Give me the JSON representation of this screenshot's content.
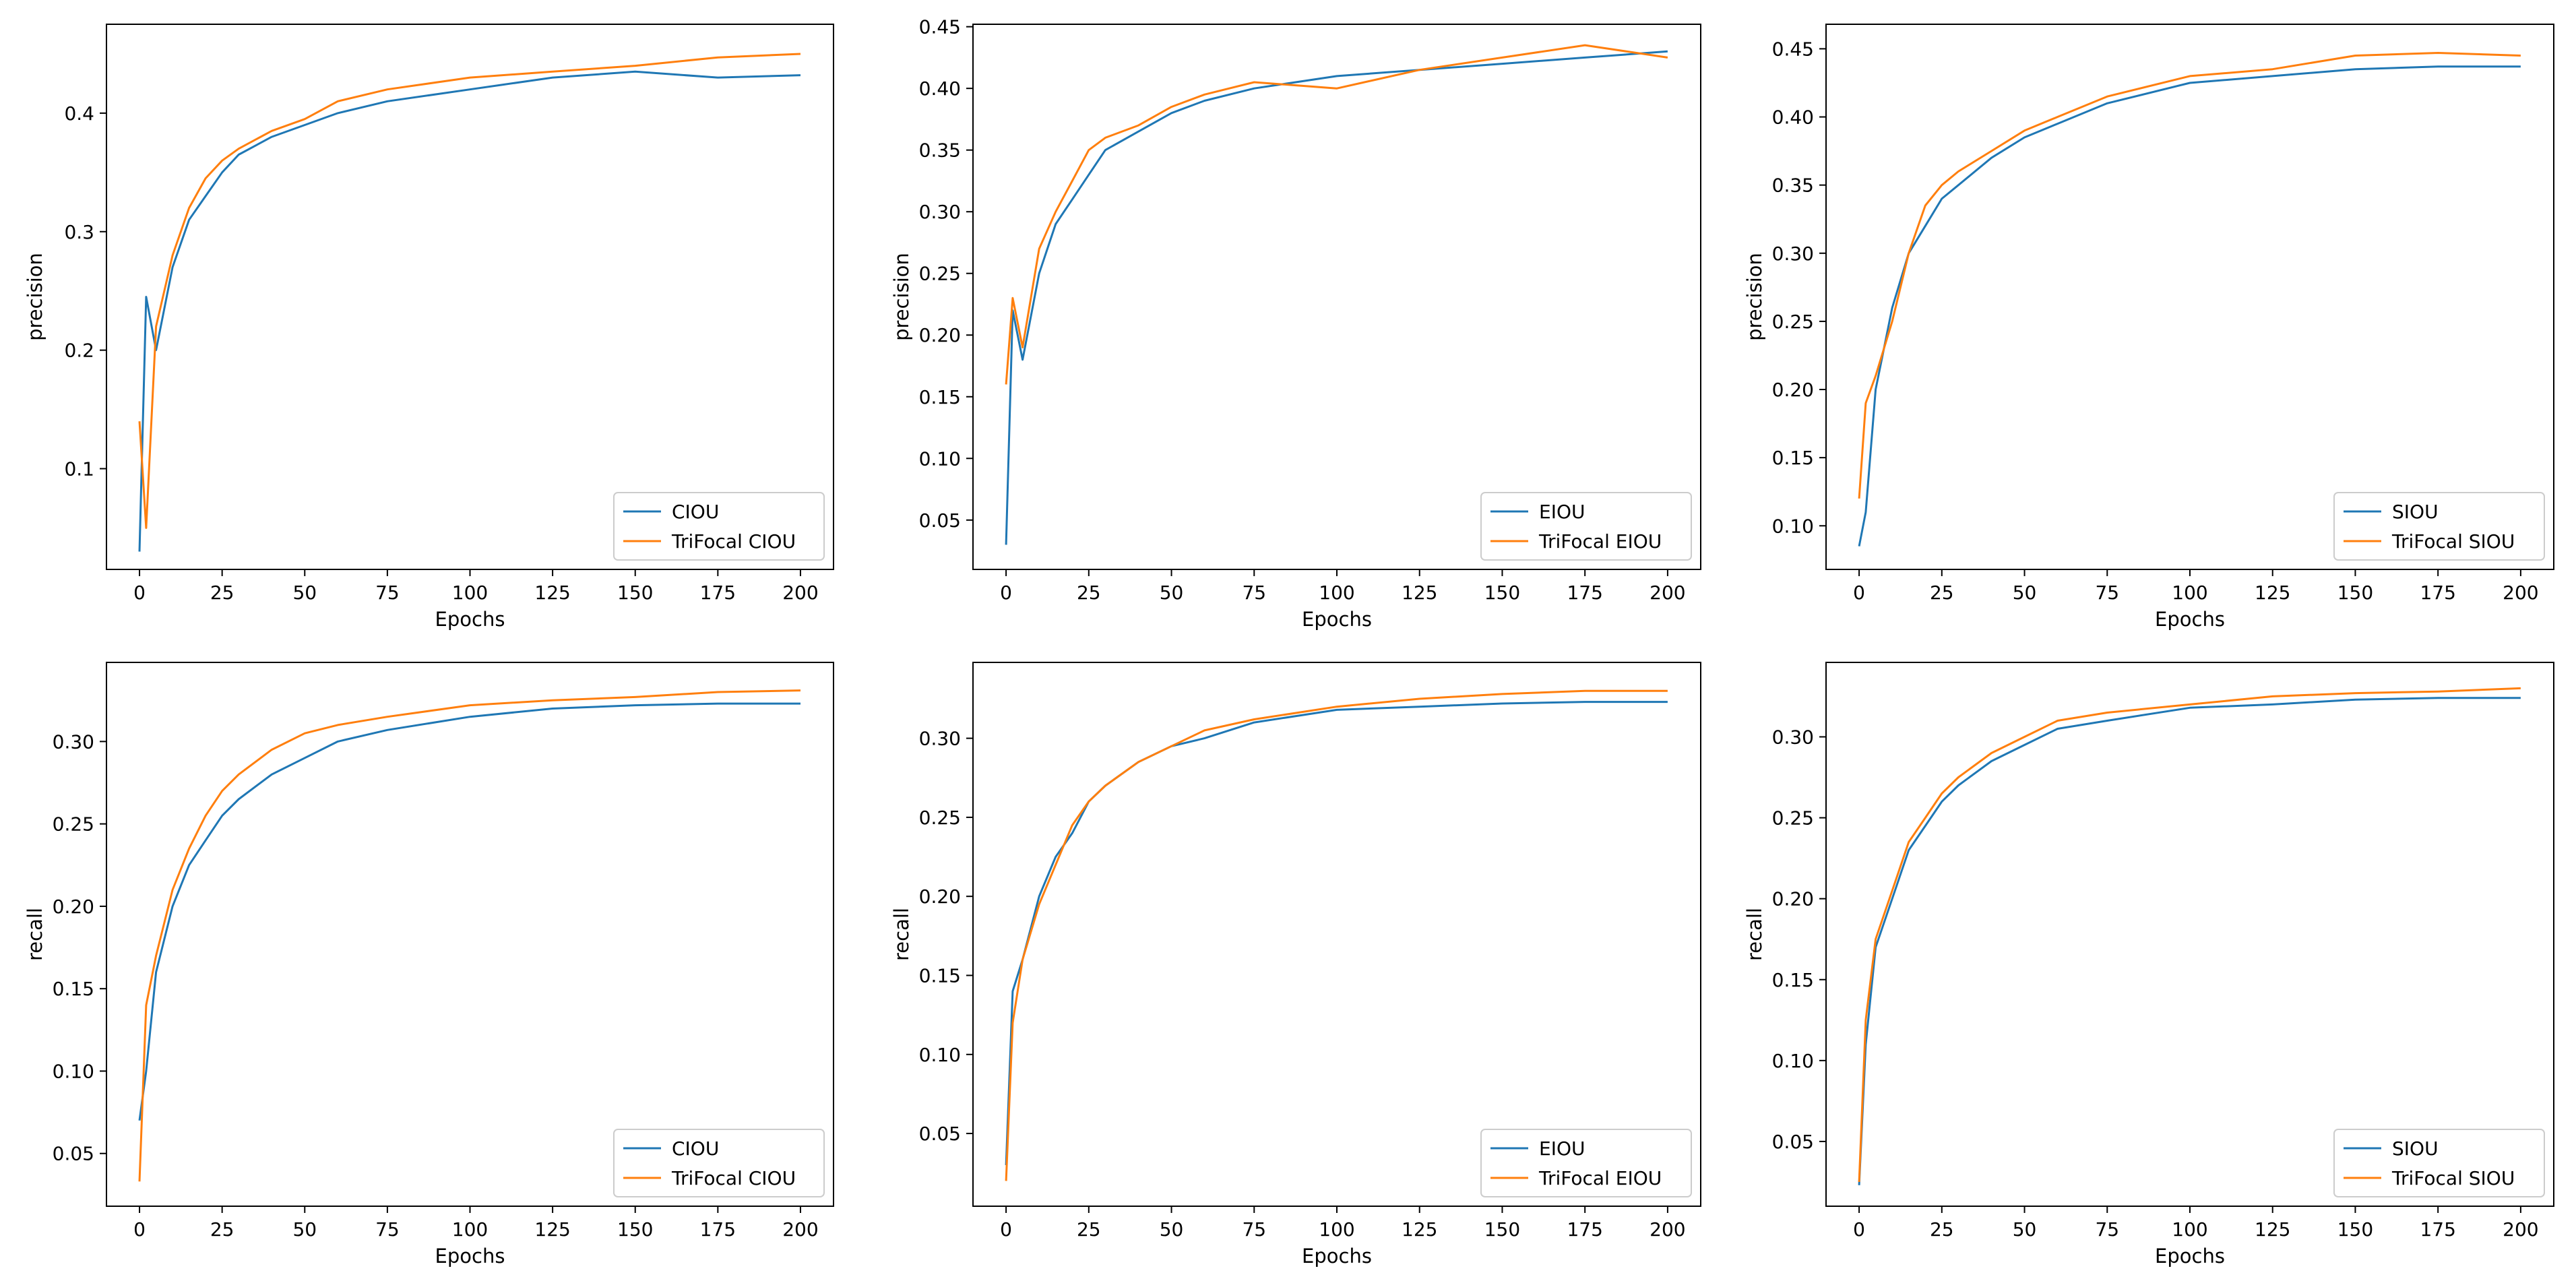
{
  "figure": {
    "colors": {
      "series1": "#1f77b4",
      "series2": "#ff7f0e",
      "axis": "#000000"
    }
  },
  "chart_data": [
    {
      "type": "line",
      "xlabel": "Epochs",
      "ylabel": "precision",
      "xlim": [
        -10,
        210
      ],
      "ylim": [
        0.015,
        0.475
      ],
      "xticks": [
        0,
        25,
        50,
        75,
        100,
        125,
        150,
        175,
        200
      ],
      "yticks": [
        0.1,
        0.2,
        0.3,
        0.4
      ],
      "ytick_decimals": 1,
      "legend_location": "lower right",
      "x": [
        0,
        2,
        5,
        10,
        15,
        20,
        25,
        30,
        40,
        50,
        60,
        75,
        100,
        125,
        150,
        175,
        200
      ],
      "series": [
        {
          "name": "CIOU",
          "values": [
            0.03,
            0.245,
            0.2,
            0.27,
            0.31,
            0.33,
            0.35,
            0.365,
            0.38,
            0.39,
            0.4,
            0.41,
            0.42,
            0.43,
            0.435,
            0.43,
            0.432
          ]
        },
        {
          "name": "TriFocal CIOU",
          "values": [
            0.14,
            0.05,
            0.22,
            0.28,
            0.32,
            0.345,
            0.36,
            0.37,
            0.385,
            0.395,
            0.41,
            0.42,
            0.43,
            0.435,
            0.44,
            0.447,
            0.45
          ]
        }
      ]
    },
    {
      "type": "line",
      "xlabel": "Epochs",
      "ylabel": "precision",
      "xlim": [
        -10,
        210
      ],
      "ylim": [
        0.01,
        0.452
      ],
      "xticks": [
        0,
        25,
        50,
        75,
        100,
        125,
        150,
        175,
        200
      ],
      "yticks": [
        0.05,
        0.1,
        0.15,
        0.2,
        0.25,
        0.3,
        0.35,
        0.4,
        0.45
      ],
      "ytick_decimals": 2,
      "legend_location": "lower right",
      "x": [
        0,
        2,
        5,
        10,
        15,
        20,
        25,
        30,
        40,
        50,
        60,
        75,
        100,
        125,
        150,
        175,
        200
      ],
      "series": [
        {
          "name": "EIOU",
          "values": [
            0.03,
            0.22,
            0.18,
            0.25,
            0.29,
            0.31,
            0.33,
            0.35,
            0.365,
            0.38,
            0.39,
            0.4,
            0.41,
            0.415,
            0.42,
            0.425,
            0.43
          ]
        },
        {
          "name": "TriFocal EIOU",
          "values": [
            0.16,
            0.23,
            0.19,
            0.27,
            0.3,
            0.325,
            0.35,
            0.36,
            0.37,
            0.385,
            0.395,
            0.405,
            0.4,
            0.415,
            0.425,
            0.435,
            0.425
          ]
        }
      ]
    },
    {
      "type": "line",
      "xlabel": "Epochs",
      "ylabel": "precision",
      "xlim": [
        -10,
        210
      ],
      "ylim": [
        0.068,
        0.468
      ],
      "xticks": [
        0,
        25,
        50,
        75,
        100,
        125,
        150,
        175,
        200
      ],
      "yticks": [
        0.1,
        0.15,
        0.2,
        0.25,
        0.3,
        0.35,
        0.4,
        0.45
      ],
      "ytick_decimals": 2,
      "legend_location": "lower right",
      "x": [
        0,
        2,
        5,
        10,
        15,
        20,
        25,
        30,
        40,
        50,
        60,
        75,
        100,
        125,
        150,
        175,
        200
      ],
      "series": [
        {
          "name": "SIOU",
          "values": [
            0.085,
            0.11,
            0.2,
            0.26,
            0.3,
            0.32,
            0.34,
            0.35,
            0.37,
            0.385,
            0.395,
            0.41,
            0.425,
            0.43,
            0.435,
            0.437,
            0.437
          ]
        },
        {
          "name": "TriFocal SIOU",
          "values": [
            0.12,
            0.19,
            0.21,
            0.25,
            0.3,
            0.335,
            0.35,
            0.36,
            0.375,
            0.39,
            0.4,
            0.415,
            0.43,
            0.435,
            0.445,
            0.447,
            0.445
          ]
        }
      ]
    },
    {
      "type": "line",
      "xlabel": "Epochs",
      "ylabel": "recall",
      "xlim": [
        -10,
        210
      ],
      "ylim": [
        0.018,
        0.348
      ],
      "xticks": [
        0,
        25,
        50,
        75,
        100,
        125,
        150,
        175,
        200
      ],
      "yticks": [
        0.05,
        0.1,
        0.15,
        0.2,
        0.25,
        0.3
      ],
      "ytick_decimals": 2,
      "legend_location": "lower right",
      "x": [
        0,
        2,
        5,
        10,
        15,
        20,
        25,
        30,
        40,
        50,
        60,
        75,
        100,
        125,
        150,
        175,
        200
      ],
      "series": [
        {
          "name": "CIOU",
          "values": [
            0.07,
            0.1,
            0.16,
            0.2,
            0.225,
            0.24,
            0.255,
            0.265,
            0.28,
            0.29,
            0.3,
            0.307,
            0.315,
            0.32,
            0.322,
            0.323,
            0.323
          ]
        },
        {
          "name": "TriFocal CIOU",
          "values": [
            0.033,
            0.14,
            0.17,
            0.21,
            0.235,
            0.255,
            0.27,
            0.28,
            0.295,
            0.305,
            0.31,
            0.315,
            0.322,
            0.325,
            0.327,
            0.33,
            0.331
          ]
        }
      ]
    },
    {
      "type": "line",
      "xlabel": "Epochs",
      "ylabel": "recall",
      "xlim": [
        -10,
        210
      ],
      "ylim": [
        0.004,
        0.348
      ],
      "xticks": [
        0,
        25,
        50,
        75,
        100,
        125,
        150,
        175,
        200
      ],
      "yticks": [
        0.05,
        0.1,
        0.15,
        0.2,
        0.25,
        0.3
      ],
      "ytick_decimals": 2,
      "legend_location": "lower right",
      "x": [
        0,
        2,
        5,
        10,
        15,
        20,
        25,
        30,
        40,
        50,
        60,
        75,
        100,
        125,
        150,
        175,
        200
      ],
      "series": [
        {
          "name": "EIOU",
          "values": [
            0.03,
            0.14,
            0.16,
            0.2,
            0.225,
            0.24,
            0.26,
            0.27,
            0.285,
            0.295,
            0.3,
            0.31,
            0.318,
            0.32,
            0.322,
            0.323,
            0.323
          ]
        },
        {
          "name": "TriFocal EIOU",
          "values": [
            0.02,
            0.12,
            0.16,
            0.195,
            0.22,
            0.245,
            0.26,
            0.27,
            0.285,
            0.295,
            0.305,
            0.312,
            0.32,
            0.325,
            0.328,
            0.33,
            0.33
          ]
        }
      ]
    },
    {
      "type": "line",
      "xlabel": "Epochs",
      "ylabel": "recall",
      "xlim": [
        -10,
        210
      ],
      "ylim": [
        0.01,
        0.346
      ],
      "xticks": [
        0,
        25,
        50,
        75,
        100,
        125,
        150,
        175,
        200
      ],
      "yticks": [
        0.05,
        0.1,
        0.15,
        0.2,
        0.25,
        0.3
      ],
      "ytick_decimals": 2,
      "legend_location": "lower right",
      "x": [
        0,
        2,
        5,
        10,
        15,
        20,
        25,
        30,
        40,
        50,
        60,
        75,
        100,
        125,
        150,
        175,
        200
      ],
      "series": [
        {
          "name": "SIOU",
          "values": [
            0.023,
            0.11,
            0.17,
            0.2,
            0.23,
            0.245,
            0.26,
            0.27,
            0.285,
            0.295,
            0.305,
            0.31,
            0.318,
            0.32,
            0.323,
            0.324,
            0.324
          ]
        },
        {
          "name": "TriFocal SIOU",
          "values": [
            0.025,
            0.125,
            0.175,
            0.205,
            0.235,
            0.25,
            0.265,
            0.275,
            0.29,
            0.3,
            0.31,
            0.315,
            0.32,
            0.325,
            0.327,
            0.328,
            0.33
          ]
        }
      ]
    }
  ]
}
